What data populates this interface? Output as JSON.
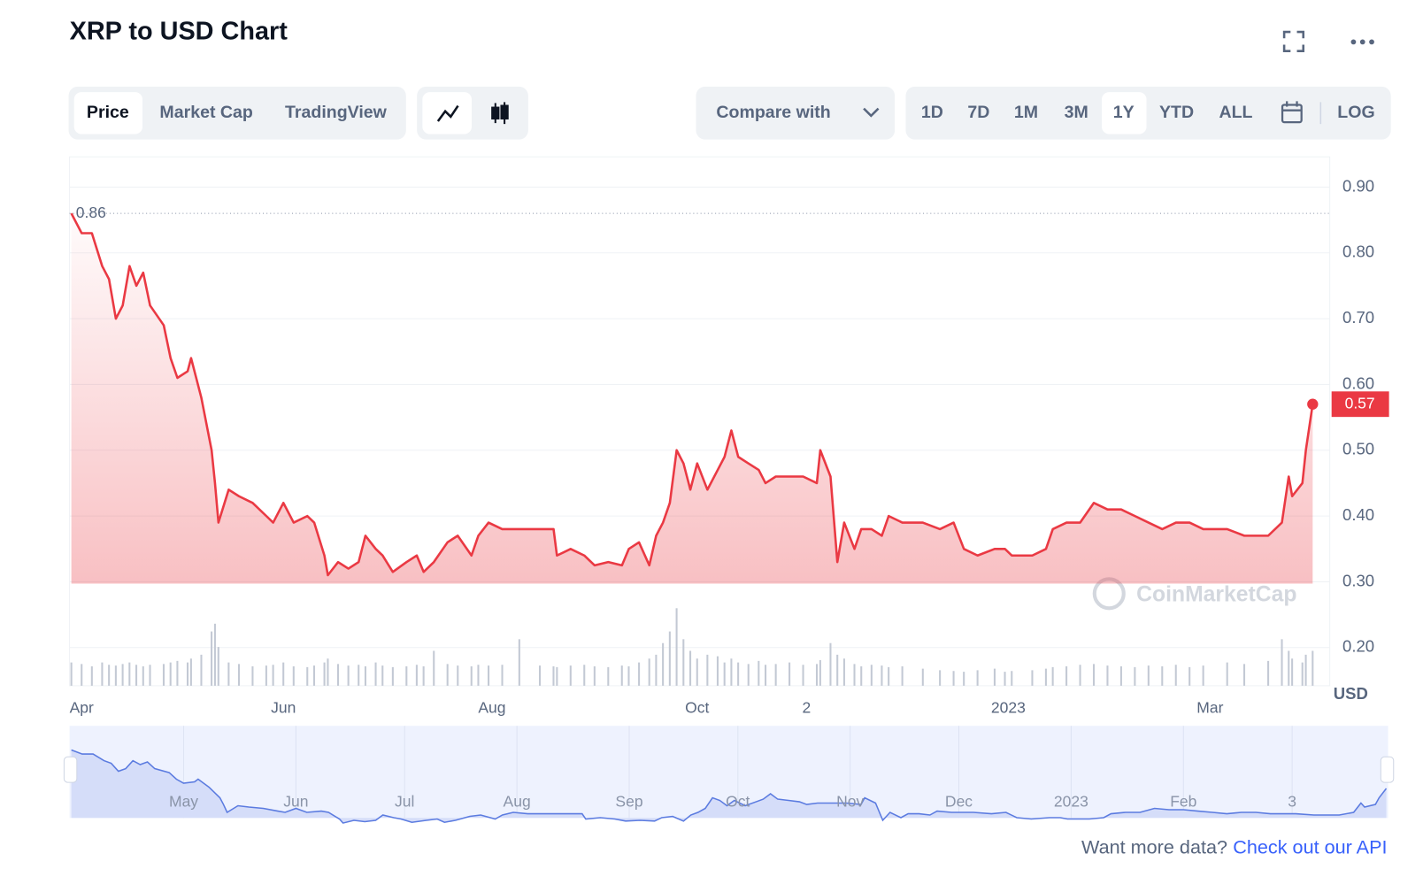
{
  "header": {
    "title": "XRP to USD Chart"
  },
  "toolbar": {
    "tabs": [
      "Price",
      "Market Cap",
      "TradingView"
    ],
    "compare": "Compare with",
    "ranges": [
      "1D",
      "7D",
      "1M",
      "3M",
      "1Y",
      "YTD",
      "ALL"
    ],
    "log": "LOG"
  },
  "chart_data": {
    "type": "line",
    "color": "#ea3943",
    "x": [
      0,
      3,
      6,
      9,
      11,
      13,
      15,
      17,
      19,
      21,
      23,
      27,
      29,
      31,
      34,
      35,
      38,
      41,
      42,
      43,
      46,
      49,
      53,
      57,
      59,
      62,
      65,
      69,
      71,
      74,
      75,
      78,
      81,
      84,
      86,
      89,
      91,
      94,
      98,
      101,
      103,
      106,
      110,
      113,
      117,
      119,
      122,
      126,
      131,
      137,
      141,
      142,
      146,
      150,
      153,
      157,
      161,
      163,
      166,
      169,
      171,
      173,
      175,
      177,
      179,
      181,
      183,
      186,
      189,
      191,
      193,
      195,
      198,
      201,
      203,
      206,
      210,
      214,
      218,
      219,
      222,
      224,
      226,
      229,
      231,
      234,
      237,
      239,
      243,
      249,
      254,
      258,
      261,
      265,
      270,
      273,
      275,
      281,
      285,
      287,
      291,
      295,
      299,
      303,
      307,
      311,
      315,
      319,
      323,
      327,
      331,
      338,
      343,
      350,
      354,
      356,
      357,
      360,
      361,
      363
    ],
    "values": [
      0.86,
      0.83,
      0.83,
      0.78,
      0.76,
      0.7,
      0.72,
      0.78,
      0.75,
      0.77,
      0.72,
      0.69,
      0.64,
      0.61,
      0.62,
      0.64,
      0.58,
      0.5,
      0.45,
      0.39,
      0.44,
      0.43,
      0.42,
      0.4,
      0.39,
      0.42,
      0.39,
      0.4,
      0.39,
      0.34,
      0.31,
      0.33,
      0.32,
      0.33,
      0.37,
      0.35,
      0.34,
      0.315,
      0.33,
      0.34,
      0.315,
      0.33,
      0.36,
      0.37,
      0.34,
      0.37,
      0.39,
      0.38,
      0.38,
      0.38,
      0.38,
      0.34,
      0.35,
      0.34,
      0.325,
      0.33,
      0.325,
      0.35,
      0.36,
      0.325,
      0.37,
      0.39,
      0.42,
      0.5,
      0.48,
      0.44,
      0.48,
      0.44,
      0.47,
      0.49,
      0.53,
      0.49,
      0.48,
      0.47,
      0.45,
      0.46,
      0.46,
      0.46,
      0.45,
      0.5,
      0.46,
      0.33,
      0.39,
      0.35,
      0.38,
      0.38,
      0.37,
      0.4,
      0.39,
      0.39,
      0.38,
      0.39,
      0.35,
      0.34,
      0.35,
      0.35,
      0.34,
      0.34,
      0.35,
      0.38,
      0.39,
      0.39,
      0.42,
      0.41,
      0.41,
      0.4,
      0.39,
      0.38,
      0.39,
      0.39,
      0.38,
      0.38,
      0.37,
      0.37,
      0.39,
      0.46,
      0.43,
      0.45,
      0.5,
      0.57
    ],
    "volume": [
      30,
      28,
      25,
      30,
      27,
      26,
      28,
      30,
      27,
      25,
      27,
      28,
      30,
      32,
      30,
      35,
      40,
      70,
      80,
      50,
      30,
      28,
      25,
      26,
      27,
      30,
      25,
      24,
      26,
      30,
      35,
      28,
      26,
      27,
      25,
      30,
      26,
      24,
      25,
      27,
      25,
      45,
      28,
      26,
      25,
      27,
      26,
      27,
      60,
      26,
      25,
      24,
      26,
      27,
      25,
      24,
      26,
      25,
      30,
      35,
      40,
      55,
      70,
      100,
      60,
      45,
      35,
      40,
      38,
      30,
      35,
      30,
      28,
      32,
      27,
      28,
      30,
      27,
      28,
      33,
      55,
      40,
      35,
      28,
      25,
      27,
      26,
      24,
      25,
      22,
      20,
      19,
      18,
      20,
      22,
      18,
      19,
      20,
      22,
      24,
      25,
      27,
      28,
      26,
      25,
      24,
      26,
      25,
      27,
      24,
      26,
      30,
      28,
      32,
      60,
      45,
      35,
      30,
      40,
      45
    ],
    "volume_color": "#c3c9d4",
    "xlim": [
      0,
      368
    ],
    "xticks": [
      {
        "value": 3,
        "label": "Apr"
      },
      {
        "value": 62,
        "label": "Jun"
      },
      {
        "value": 123,
        "label": "Aug"
      },
      {
        "value": 183,
        "label": "Oct"
      },
      {
        "value": 215,
        "label": "2"
      },
      {
        "value": 274,
        "label": "2023"
      },
      {
        "value": 333,
        "label": "Mar"
      }
    ],
    "ylim": [
      0.142,
      0.946
    ],
    "yticks": [
      {
        "value": 0.2,
        "label": "0.20"
      },
      {
        "value": 0.3,
        "label": "0.30"
      },
      {
        "value": 0.4,
        "label": "0.40"
      },
      {
        "value": 0.5,
        "label": "0.50"
      },
      {
        "value": 0.6,
        "label": "0.60"
      },
      {
        "value": 0.7,
        "label": "0.70"
      },
      {
        "value": 0.8,
        "label": "0.80"
      },
      {
        "value": 0.9,
        "label": "0.90"
      }
    ],
    "y_axis_label": "USD",
    "grid": true,
    "watermark": "CoinMarketCap",
    "navigator": {
      "color": "#5b7be0",
      "xticks": [
        {
          "value": 31,
          "label": "May"
        },
        {
          "value": 62,
          "label": "Jun"
        },
        {
          "value": 92,
          "label": "Jul"
        },
        {
          "value": 123,
          "label": "Aug"
        },
        {
          "value": 154,
          "label": "Sep"
        },
        {
          "value": 184,
          "label": "Oct"
        },
        {
          "value": 215,
          "label": "Nov"
        },
        {
          "value": 245,
          "label": "Dec"
        },
        {
          "value": 276,
          "label": "2023"
        },
        {
          "value": 307,
          "label": "Feb"
        },
        {
          "value": 337,
          "label": "3"
        }
      ]
    }
  },
  "footer": {
    "text": "Want more data?",
    "link": "Check out our API"
  }
}
